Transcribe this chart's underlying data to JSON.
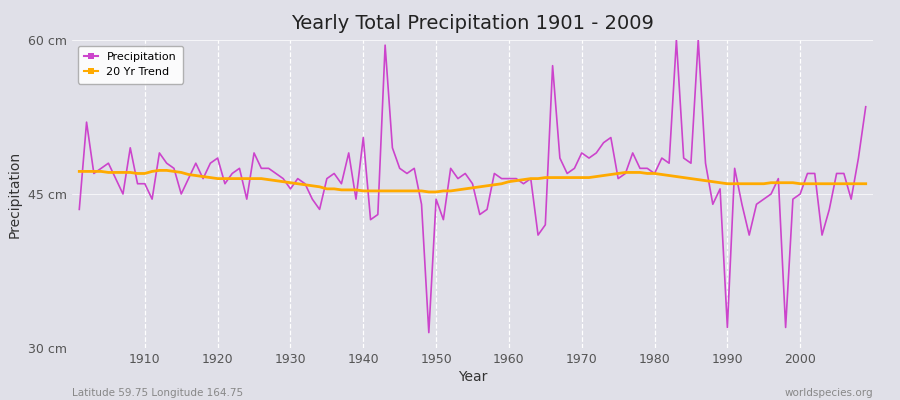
{
  "title": "Yearly Total Precipitation 1901 - 2009",
  "xlabel": "Year",
  "ylabel": "Precipitation",
  "subtitle_left": "Latitude 59.75 Longitude 164.75",
  "subtitle_right": "worldspecies.org",
  "bg_color": "#e0e0e8",
  "plot_bg_color": "#e0e0e8",
  "precip_color": "#cc44cc",
  "trend_color": "#ffaa00",
  "ylim": [
    30,
    60
  ],
  "yticks": [
    30,
    45,
    60
  ],
  "ytick_labels": [
    "30 cm",
    "45 cm",
    "60 cm"
  ],
  "years": [
    1901,
    1902,
    1903,
    1904,
    1905,
    1906,
    1907,
    1908,
    1909,
    1910,
    1911,
    1912,
    1913,
    1914,
    1915,
    1916,
    1917,
    1918,
    1919,
    1920,
    1921,
    1922,
    1923,
    1924,
    1925,
    1926,
    1927,
    1928,
    1929,
    1930,
    1931,
    1932,
    1933,
    1934,
    1935,
    1936,
    1937,
    1938,
    1939,
    1940,
    1941,
    1942,
    1943,
    1944,
    1945,
    1946,
    1947,
    1948,
    1949,
    1950,
    1951,
    1952,
    1953,
    1954,
    1955,
    1956,
    1957,
    1958,
    1959,
    1960,
    1961,
    1962,
    1963,
    1964,
    1965,
    1966,
    1967,
    1968,
    1969,
    1970,
    1971,
    1972,
    1973,
    1974,
    1975,
    1976,
    1977,
    1978,
    1979,
    1980,
    1981,
    1982,
    1983,
    1984,
    1985,
    1986,
    1987,
    1988,
    1989,
    1990,
    1991,
    1992,
    1993,
    1994,
    1995,
    1996,
    1997,
    1998,
    1999,
    2000,
    2001,
    2002,
    2003,
    2004,
    2005,
    2006,
    2007,
    2008,
    2009
  ],
  "precip": [
    43.5,
    52.0,
    47.0,
    47.5,
    48.0,
    46.5,
    45.0,
    49.5,
    46.0,
    46.0,
    44.5,
    49.0,
    48.0,
    47.5,
    45.0,
    46.5,
    48.0,
    46.5,
    48.0,
    48.5,
    46.0,
    47.0,
    47.5,
    44.5,
    49.0,
    47.5,
    47.5,
    47.0,
    46.5,
    45.5,
    46.5,
    46.0,
    44.5,
    43.5,
    46.5,
    47.0,
    46.0,
    49.0,
    44.5,
    50.5,
    42.5,
    43.0,
    59.5,
    49.5,
    47.5,
    47.0,
    47.5,
    44.0,
    31.5,
    44.5,
    42.5,
    47.5,
    46.5,
    47.0,
    46.0,
    43.0,
    43.5,
    47.0,
    46.5,
    46.5,
    46.5,
    46.0,
    46.5,
    41.0,
    42.0,
    57.5,
    48.5,
    47.0,
    47.5,
    49.0,
    48.5,
    49.0,
    50.0,
    50.5,
    46.5,
    47.0,
    49.0,
    47.5,
    47.5,
    47.0,
    48.5,
    48.0,
    60.0,
    48.5,
    48.0,
    60.0,
    48.0,
    44.0,
    45.5,
    32.0,
    47.5,
    44.0,
    41.0,
    44.0,
    44.5,
    45.0,
    46.5,
    32.0,
    44.5,
    45.0,
    47.0,
    47.0,
    41.0,
    43.5,
    47.0,
    47.0,
    44.5,
    48.5,
    53.5
  ],
  "trend": [
    47.2,
    47.2,
    47.2,
    47.2,
    47.1,
    47.1,
    47.1,
    47.1,
    47.0,
    47.0,
    47.2,
    47.3,
    47.3,
    47.2,
    47.1,
    46.9,
    46.8,
    46.7,
    46.6,
    46.5,
    46.5,
    46.5,
    46.5,
    46.5,
    46.5,
    46.5,
    46.4,
    46.3,
    46.2,
    46.1,
    46.0,
    45.9,
    45.8,
    45.7,
    45.5,
    45.5,
    45.4,
    45.4,
    45.4,
    45.3,
    45.3,
    45.3,
    45.3,
    45.3,
    45.3,
    45.3,
    45.3,
    45.3,
    45.2,
    45.2,
    45.3,
    45.3,
    45.4,
    45.5,
    45.6,
    45.7,
    45.8,
    45.9,
    46.0,
    46.2,
    46.3,
    46.4,
    46.5,
    46.5,
    46.6,
    46.6,
    46.6,
    46.6,
    46.6,
    46.6,
    46.6,
    46.7,
    46.8,
    46.9,
    47.0,
    47.1,
    47.1,
    47.1,
    47.0,
    47.0,
    46.9,
    46.8,
    46.7,
    46.6,
    46.5,
    46.4,
    46.3,
    46.2,
    46.1,
    46.0,
    46.0,
    46.0,
    46.0,
    46.0,
    46.0,
    46.1,
    46.1,
    46.1,
    46.1,
    46.0,
    46.0,
    46.0,
    46.0,
    46.0,
    46.0,
    46.0,
    46.0,
    46.0,
    46.0
  ]
}
